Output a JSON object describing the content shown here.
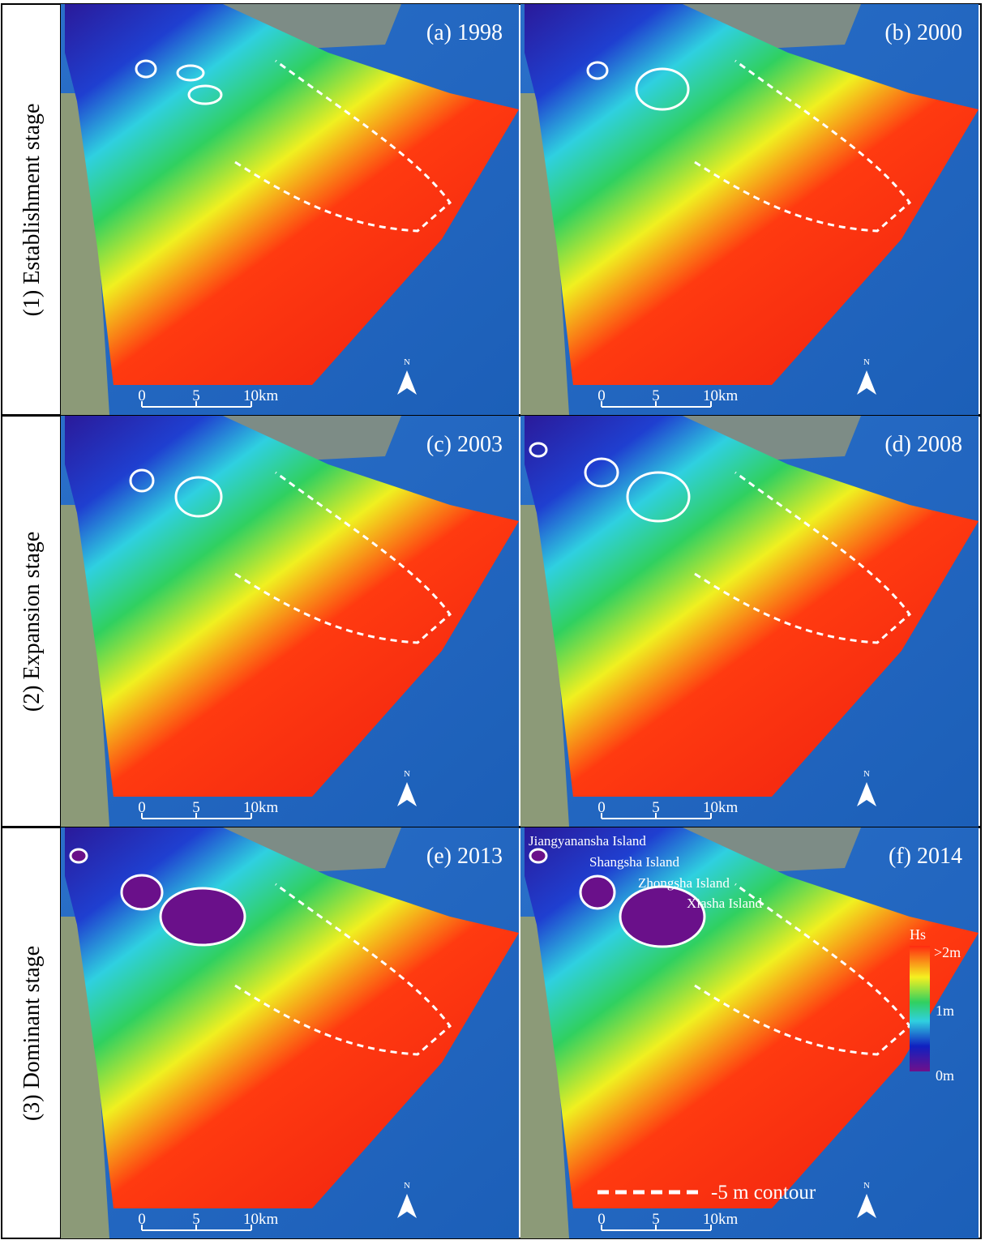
{
  "rows": [
    {
      "label": "(1) Establishment stage",
      "panels": [
        {
          "label": "(a) 1998"
        },
        {
          "label": "(b) 2000"
        }
      ]
    },
    {
      "label": "(2) Expansion stage",
      "panels": [
        {
          "label": "(c) 2003"
        },
        {
          "label": "(d) 2008"
        }
      ]
    },
    {
      "label": "(3) Dominant stage",
      "panels": [
        {
          "label": "(e) 2013"
        },
        {
          "label": "(f) 2014"
        }
      ]
    }
  ],
  "scale_bar": [
    "0",
    "5",
    "10km"
  ],
  "north_label": "N",
  "islands": [
    "Jiangyanansha Island",
    "Shangsha Island",
    "Zhongsha Island",
    "Xiasha Island"
  ],
  "legend": {
    "title": "Hs",
    "max": ">2m",
    "mid": "1m",
    "min": "0m",
    "contour": "-5 m contour"
  }
}
